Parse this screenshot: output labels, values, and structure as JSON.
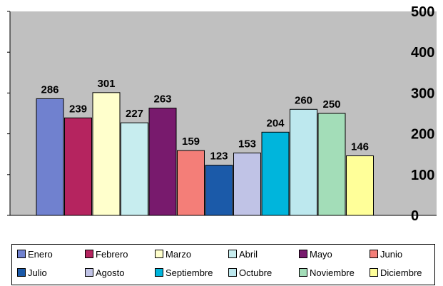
{
  "chart_data": {
    "type": "bar",
    "categories": [
      "Enero",
      "Febrero",
      "Marzo",
      "Abril",
      "Mayo",
      "Junio",
      "Julio",
      "Agosto",
      "Septiembre",
      "Octubre",
      "Noviembre",
      "Diciembre"
    ],
    "values": [
      286,
      239,
      301,
      227,
      263,
      159,
      123,
      153,
      204,
      260,
      250,
      146
    ],
    "colors": [
      "#7081cf",
      "#b5245f",
      "#ffffcc",
      "#c7edef",
      "#781a6d",
      "#f47e78",
      "#1b5aa9",
      "#c0c3e6",
      "#00b5dc",
      "#bde8ee",
      "#a3ddb8",
      "#ffff99"
    ],
    "title": "",
    "xlabel": "",
    "ylabel": "",
    "ylim": [
      0,
      500
    ],
    "yticks": [
      0,
      100,
      200,
      300,
      400,
      500
    ],
    "yaxis_side": "right",
    "plot_background": "#c0c0c0",
    "grid": false,
    "legend_position": "bottom",
    "data_labels": true
  }
}
